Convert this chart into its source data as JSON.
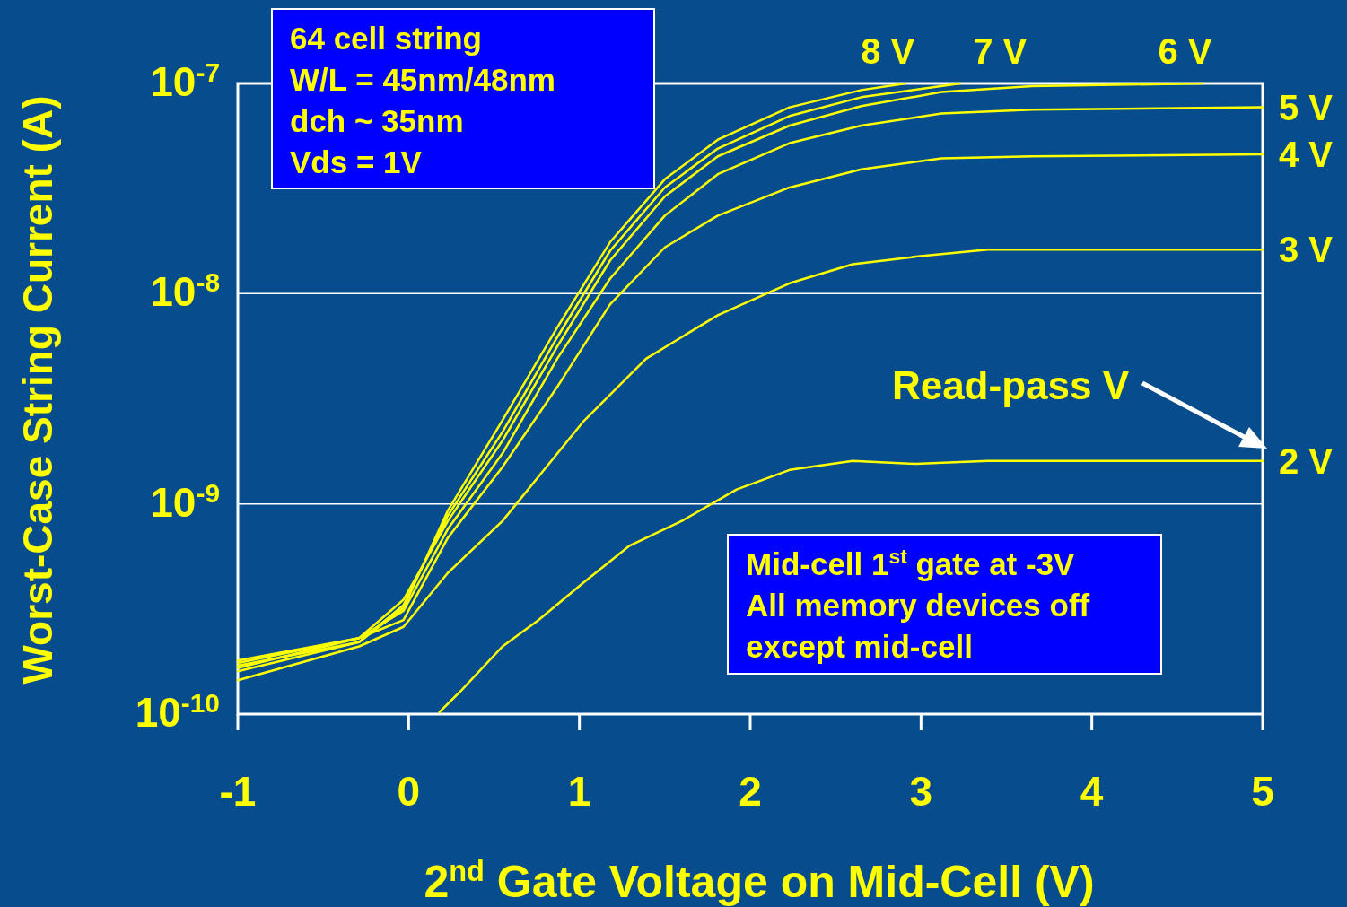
{
  "chart_data": {
    "type": "line",
    "xlabel": "2$^{nd}$ Gate Voltage on Mid-Cell (V)",
    "ylabel": "Worst-Case String Current (A)",
    "annotations": [
      "64 cell string\nW/L = 45nm/48nm\ndch ~ 35nm\nVds = 1V",
      "Mid-cell 1$^{st}$ gate at -3V\nAll memory devices off\nexcept mid-cell",
      "Read-pass V"
    ],
    "xlim": [
      -1,
      5
    ],
    "xticks": [
      -1,
      0,
      1,
      2,
      3,
      4,
      5
    ],
    "ylim": [
      1e-10,
      1e-07
    ],
    "yticks": [
      {
        "value": 1e-10,
        "label": "10$^{-10}$"
      },
      {
        "value": 1e-09,
        "label": "10$^{-9}$"
      },
      {
        "value": 1e-08,
        "label": "10$^{-8}$"
      },
      {
        "value": 1e-07,
        "label": "10$^{-7}$"
      }
    ],
    "log": "y",
    "grid": "y",
    "series": [
      {
        "name": "2 V",
        "color": "#ffff00",
        "x": [
          0.18,
          0.31,
          0.55,
          0.76,
          1.02,
          1.29,
          1.6,
          1.92,
          2.23,
          2.6,
          2.97,
          3.39,
          3.91,
          4.44,
          5
        ],
        "values": [
          1.02e-10,
          1.3e-10,
          2.1e-10,
          2.8e-10,
          4.2e-10,
          6.3e-10,
          8.3e-10,
          1.17e-09,
          1.45e-09,
          1.6e-09,
          1.55e-09,
          1.6e-09,
          1.6e-09,
          1.6e-09,
          1.6e-09
        ]
      },
      {
        "name": "3 V",
        "color": "#ffff00",
        "x": [
          -1,
          -0.29,
          -0.03,
          0.23,
          0.55,
          1.02,
          1.39,
          1.81,
          2.23,
          2.6,
          2.97,
          3.39,
          4,
          5
        ],
        "values": [
          1.45e-10,
          2.1e-10,
          2.6e-10,
          4.7e-10,
          8.3e-10,
          2.45e-09,
          4.9e-09,
          7.9e-09,
          1.12e-08,
          1.38e-08,
          1.5e-08,
          1.62e-08,
          1.62e-08,
          1.62e-08
        ]
      },
      {
        "name": "4 V",
        "color": "#ffff00",
        "x": [
          -1,
          -0.29,
          -0.03,
          0.23,
          0.55,
          0.87,
          1.18,
          1.5,
          1.81,
          2.23,
          2.65,
          3.12,
          3.65,
          5
        ],
        "values": [
          1.66e-10,
          2.3e-10,
          2.8e-10,
          6.9e-10,
          1.5e-09,
          3.6e-09,
          8.9e-09,
          1.66e-08,
          2.35e-08,
          3.2e-08,
          3.9e-08,
          4.4e-08,
          4.5e-08,
          4.6e-08
        ]
      },
      {
        "name": "5 V",
        "color": "#ffff00",
        "x": [
          -1,
          -0.29,
          -0.03,
          0.23,
          0.55,
          0.87,
          1.18,
          1.5,
          1.81,
          2.23,
          2.65,
          3.12,
          3.65,
          5
        ],
        "values": [
          1.75e-10,
          2.3e-10,
          3.1e-10,
          7.6e-10,
          1.74e-09,
          4.9e-09,
          1.18e-08,
          2.35e-08,
          3.7e-08,
          5.2e-08,
          6.3e-08,
          7.2e-08,
          7.5e-08,
          7.7e-08
        ]
      },
      {
        "name": "6 V",
        "color": "#ffff00",
        "x": [
          -1,
          -0.29,
          -0.03,
          0.23,
          0.55,
          0.87,
          1.18,
          1.5,
          1.81,
          2.23,
          2.65,
          3.12,
          3.65,
          4.65
        ],
        "values": [
          1.8e-10,
          2.3e-10,
          3.5e-10,
          8.3e-10,
          2e-09,
          5.6e-09,
          1.44e-08,
          2.9e-08,
          4.5e-08,
          6.3e-08,
          7.8e-08,
          9.1e-08,
          9.7e-08,
          1e-07
        ]
      },
      {
        "name": "7 V",
        "color": "#ffff00",
        "x": [
          -1,
          -0.29,
          -0.03,
          0.23,
          0.55,
          0.87,
          1.18,
          1.5,
          1.81,
          2.23,
          2.65,
          3.23
        ],
        "values": [
          1.7e-10,
          2.2e-10,
          3.3e-10,
          8.8e-10,
          2.2e-09,
          6.2e-09,
          1.6e-08,
          3.2e-08,
          4.9e-08,
          7e-08,
          8.6e-08,
          1e-07
        ]
      },
      {
        "name": "8 V",
        "color": "#ffff00",
        "x": [
          -1,
          -0.29,
          -0.03,
          0.23,
          0.55,
          0.87,
          1.18,
          1.5,
          1.81,
          2.23,
          2.65,
          2.91
        ],
        "values": [
          1.6e-10,
          2.2e-10,
          3.2e-10,
          9.3e-10,
          2.5e-09,
          6.9e-09,
          1.76e-08,
          3.5e-08,
          5.4e-08,
          7.7e-08,
          9.3e-08,
          1e-07
        ]
      }
    ]
  }
}
